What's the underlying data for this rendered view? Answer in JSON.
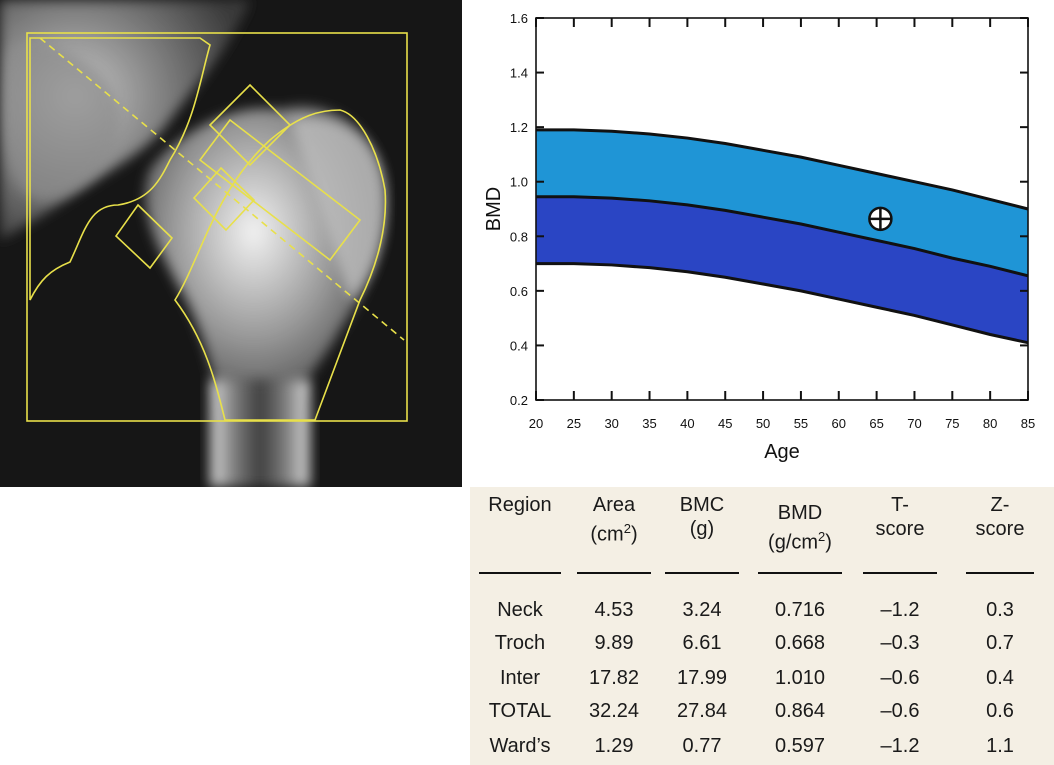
{
  "chart_data": {
    "type": "area",
    "xlabel": "Age",
    "ylabel": "BMD",
    "xlim": [
      20,
      85
    ],
    "ylim": [
      0.2,
      1.6
    ],
    "x_ticks": [
      20,
      25,
      30,
      35,
      40,
      45,
      50,
      55,
      60,
      65,
      70,
      75,
      80,
      85
    ],
    "y_ticks": [
      "0.2",
      "0.4",
      "0.6",
      "0.8",
      "1.0",
      "1.2",
      "1.4",
      "1.6"
    ],
    "x": [
      20,
      25,
      30,
      35,
      40,
      45,
      50,
      55,
      60,
      65,
      70,
      75,
      80,
      85
    ],
    "series": [
      {
        "values": [
          1.19,
          1.19,
          1.185,
          1.175,
          1.16,
          1.14,
          1.115,
          1.09,
          1.06,
          1.03,
          1.0,
          0.97,
          0.935,
          0.9
        ],
        "color": "#1f95d6"
      },
      {
        "values": [
          0.945,
          0.945,
          0.94,
          0.93,
          0.915,
          0.895,
          0.87,
          0.845,
          0.815,
          0.785,
          0.755,
          0.72,
          0.69,
          0.655
        ],
        "color": "#2a45c4"
      },
      {
        "values": [
          0.7,
          0.7,
          0.695,
          0.685,
          0.67,
          0.65,
          0.625,
          0.6,
          0.57,
          0.54,
          0.51,
          0.475,
          0.44,
          0.41
        ]
      }
    ],
    "patient_point": {
      "x": 65.5,
      "y": 0.864
    }
  },
  "table": {
    "headers": [
      {
        "line1": "Region",
        "line2": "",
        "sup": "",
        "line2_after": ""
      },
      {
        "line1": "Area",
        "line2": "(cm",
        "sup": "2",
        "line2_after": ")"
      },
      {
        "line1": "BMC",
        "line2": "(g)",
        "sup": "",
        "line2_after": ""
      },
      {
        "line1": "BMD",
        "line2": "(g/cm",
        "sup": "2",
        "line2_after": ")"
      },
      {
        "line1": "T-",
        "line2": "score",
        "sup": "",
        "line2_after": ""
      },
      {
        "line1": "Z-",
        "line2": "score",
        "sup": "",
        "line2_after": ""
      }
    ],
    "rows": [
      [
        "Neck",
        "4.53",
        "3.24",
        "0.716",
        "–1.2",
        "0.3"
      ],
      [
        "Troch",
        "9.89",
        "6.61",
        "0.668",
        "–0.3",
        "0.7"
      ],
      [
        "Inter",
        "17.82",
        "17.99",
        "1.010",
        "–0.6",
        "0.4"
      ],
      [
        "TOTAL",
        "32.24",
        "27.84",
        "0.864",
        "–0.6",
        "0.6"
      ],
      [
        "Ward’s",
        "1.29",
        "0.77",
        "0.597",
        "–1.2",
        "1.1"
      ]
    ]
  }
}
